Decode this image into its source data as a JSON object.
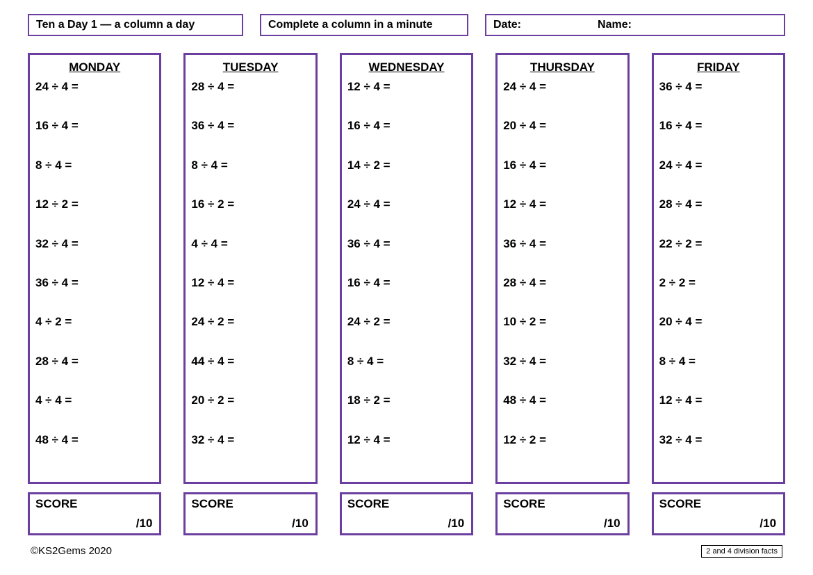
{
  "header": {
    "title": "Ten a Day 1 — a column a day",
    "instruction": "Complete a column in a minute",
    "date_label": "Date:",
    "name_label": "Name:"
  },
  "columns": [
    {
      "day": "MONDAY",
      "problems": [
        "24 ÷ 4 =",
        "16 ÷ 4 =",
        "8 ÷  4 =",
        "12 ÷ 2 =",
        "32 ÷ 4 =",
        "36 ÷ 4 =",
        "4 ÷ 2 =",
        "28 ÷ 4 =",
        "4 ÷ 4 =",
        "48 ÷ 4 ="
      ]
    },
    {
      "day": "TUESDAY",
      "problems": [
        "28 ÷ 4 =",
        "36 ÷ 4 =",
        "8 ÷ 4 =",
        "16 ÷ 2 =",
        "4 ÷ 4 =",
        "12 ÷ 4 =",
        "24 ÷ 2 =",
        "44 ÷ 4 =",
        "20 ÷ 2 =",
        "32 ÷ 4 ="
      ]
    },
    {
      "day": "WEDNESDAY",
      "problems": [
        "12 ÷ 4 =",
        "16 ÷ 4 =",
        "14 ÷ 2 =",
        "24 ÷ 4 =",
        "36 ÷ 4 =",
        "16 ÷  4 =",
        "24 ÷ 2 =",
        "8 ÷ 4 =",
        "18 ÷ 2 =",
        "12 ÷ 4 ="
      ]
    },
    {
      "day": "THURSDAY",
      "problems": [
        "24 ÷ 4 =",
        "20 ÷ 4 =",
        "16 ÷ 4 =",
        "12 ÷ 4 =",
        "36 ÷ 4 =",
        "28 ÷ 4 =",
        "10 ÷ 2 =",
        "32 ÷ 4 =",
        "48 ÷ 4 =",
        "12 ÷ 2 ="
      ]
    },
    {
      "day": "FRIDAY",
      "problems": [
        "36 ÷ 4 =",
        "16 ÷  4 =",
        "24 ÷ 4 =",
        "28 ÷ 4 =",
        "22 ÷ 2 =",
        "2 ÷ 2 =",
        "20 ÷ 4 =",
        "8 ÷ 4 =",
        "12 ÷ 4 =",
        "32 ÷ 4 ="
      ]
    }
  ],
  "score": {
    "label": "SCORE",
    "denominator": "/10"
  },
  "footer": {
    "copyright": "©KS2Gems 2020",
    "topic": "2 and 4 division facts"
  },
  "style": {
    "border_color": "#6b3fa0",
    "background_color": "#ffffff",
    "text_color": "#000000",
    "font_family": "Comic Sans MS",
    "day_font_size": 17,
    "problem_font_size": 17,
    "header_font_size": 16,
    "column_count": 5,
    "problems_per_column": 10
  }
}
